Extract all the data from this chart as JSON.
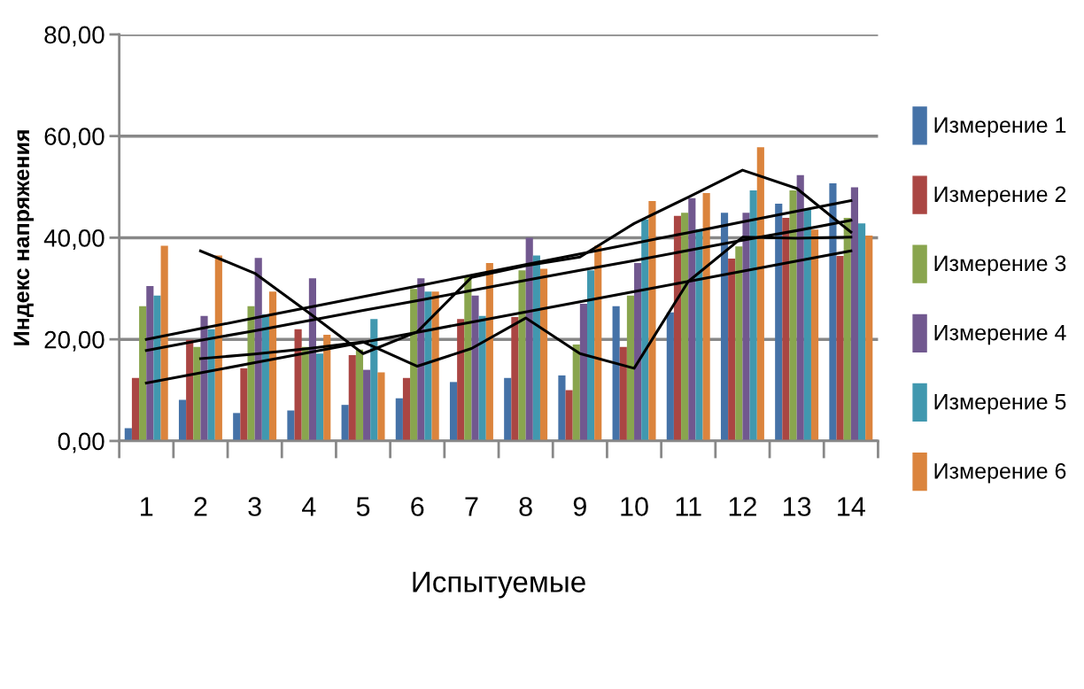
{
  "chart_data": {
    "type": "bar",
    "xlabel": "Испытуемые",
    "ylabel": "Индекс напряжения",
    "categories": [
      "1",
      "2",
      "3",
      "4",
      "5",
      "6",
      "7",
      "8",
      "9",
      "10",
      "11",
      "12",
      "13",
      "14"
    ],
    "series": [
      {
        "name": "Измерение 1",
        "color": "#4572a7",
        "values": [
          2.5,
          8.1,
          5.5,
          6.0,
          7.1,
          8.4,
          11.6,
          12.4,
          12.9,
          26.5,
          25.3,
          44.9,
          46.7,
          50.7
        ]
      },
      {
        "name": "Измерение 2",
        "color": "#aa4643",
        "values": [
          12.4,
          19.9,
          14.3,
          22.0,
          16.9,
          12.4,
          24.0,
          24.4,
          10.0,
          18.5,
          44.3,
          35.9,
          43.9,
          36.4
        ]
      },
      {
        "name": "Измерение 3",
        "color": "#89a54e",
        "values": [
          26.5,
          18.5,
          26.5,
          18.5,
          18.0,
          29.9,
          32.4,
          33.6,
          19.0,
          28.6,
          44.9,
          38.3,
          49.3,
          43.9
        ]
      },
      {
        "name": "Измерение 4",
        "color": "#71588f",
        "values": [
          30.5,
          24.6,
          36.0,
          32.0,
          14.0,
          32.0,
          28.6,
          40.0,
          27.0,
          35.0,
          47.8,
          44.9,
          52.3,
          49.9
        ]
      },
      {
        "name": "Измерение 5",
        "color": "#4198af",
        "values": [
          28.6,
          22.0,
          24.9,
          17.2,
          24.0,
          29.4,
          24.6,
          36.5,
          33.6,
          43.6,
          41.7,
          49.3,
          45.7,
          42.8
        ]
      },
      {
        "name": "Измерение 6",
        "color": "#db843d",
        "values": [
          38.4,
          36.5,
          29.4,
          20.9,
          13.5,
          29.4,
          35.0,
          33.9,
          38.4,
          47.2,
          48.8,
          57.8,
          41.6,
          40.4
        ]
      },
      {
        "type": "line",
        "color": "#000000",
        "values": [
          20.0,
          22.1,
          24.2,
          26.3,
          28.4,
          30.5,
          32.6,
          34.7,
          36.8,
          38.9,
          41.0,
          43.1,
          45.2,
          47.3
        ]
      },
      {
        "type": "line",
        "color": "#000000",
        "values": [
          17.8,
          19.8,
          21.7,
          23.7,
          25.7,
          27.6,
          29.6,
          31.6,
          33.6,
          35.5,
          37.5,
          39.5,
          41.4,
          43.4
        ]
      },
      {
        "type": "line",
        "color": "#000000",
        "values": [
          11.4,
          13.4,
          15.4,
          17.4,
          19.4,
          21.4,
          23.4,
          25.4,
          27.4,
          29.4,
          31.4,
          33.4,
          35.4,
          37.4
        ]
      },
      {
        "type": "line",
        "color": "#000000",
        "values": [
          null,
          37.4,
          33.0,
          25.2,
          17.2,
          21.5,
          32.2,
          34.5,
          36.2,
          42.8,
          48.0,
          53.3,
          49.7,
          41.1
        ]
      },
      {
        "type": "line",
        "color": "#000000",
        "values": [
          null,
          16.2,
          17.1,
          18.2,
          19.5,
          14.7,
          18.2,
          24.2,
          17.2,
          14.3,
          31.4,
          40.1,
          39.9,
          40.1
        ]
      }
    ],
    "ylim": [
      0,
      80
    ],
    "yticks": [
      {
        "value": 0,
        "label": "0,00"
      },
      {
        "value": 20,
        "label": "20,00"
      },
      {
        "value": 40,
        "label": "40,00"
      },
      {
        "value": 60,
        "label": "60,00"
      },
      {
        "value": 80,
        "label": "80,00"
      }
    ],
    "grid": "y",
    "legend": "right"
  }
}
